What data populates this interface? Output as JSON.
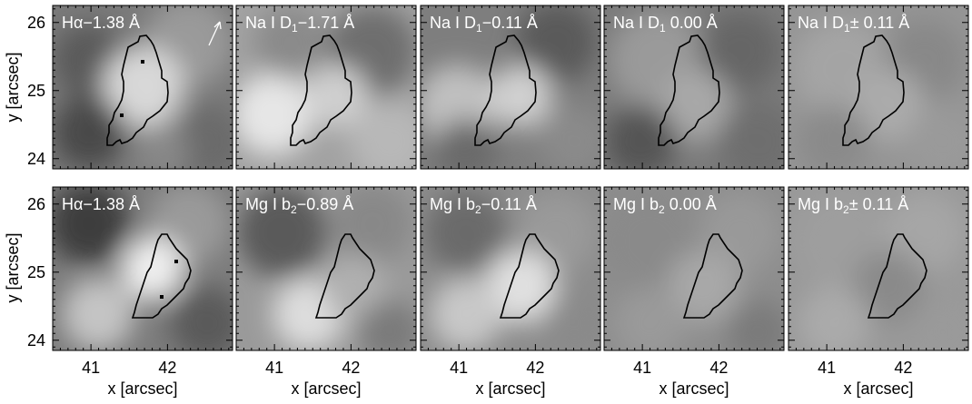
{
  "figure": {
    "x_axis_label": "x  [arcsec]",
    "y_axis_label": "y  [arcsec]",
    "x_ticks": [
      "41",
      "42"
    ],
    "y_ticks": [
      "24",
      "25",
      "26"
    ],
    "x_range": [
      40.5,
      42.85
    ],
    "y_range": [
      23.85,
      26.25
    ],
    "panels_top": [
      {
        "id": "t1",
        "line": "Hα",
        "offset": "−1.38 Å",
        "mean_gray": "#7a7a7a",
        "direction_arrow": true,
        "marker_count": 2
      },
      {
        "id": "t2",
        "line": "Na I D",
        "sub": "1",
        "offset": "−1.71 Å",
        "mean_gray": "#a2a2a2"
      },
      {
        "id": "t3",
        "line": "Na I D",
        "sub": "1",
        "offset": "−0.11 Å",
        "mean_gray": "#7e7e7e"
      },
      {
        "id": "t4",
        "line": "Na I D",
        "sub": "1",
        "offset": " 0.00 Å",
        "mean_gray": "#7b7b7b"
      },
      {
        "id": "t5",
        "line": "Na I D",
        "sub": "1",
        "offset": "± 0.11 Å",
        "mean_gray": "#959595"
      }
    ],
    "panels_bottom": [
      {
        "id": "b1",
        "line": "Hα",
        "offset": "−1.38 Å",
        "mean_gray": "#7c7c7c",
        "marker_count": 2
      },
      {
        "id": "b2",
        "line": "Mg I b",
        "sub": "2",
        "offset": "−0.89 Å",
        "mean_gray": "#9a9a9a"
      },
      {
        "id": "b3",
        "line": "Mg I b",
        "sub": "2",
        "offset": "−0.11 Å",
        "mean_gray": "#8c8c8c"
      },
      {
        "id": "b4",
        "line": "Mg I b",
        "sub": "2",
        "offset": " 0.00 Å",
        "mean_gray": "#8d8d8d"
      },
      {
        "id": "b5",
        "line": "Mg I b",
        "sub": "2",
        "offset": "± 0.11 Å",
        "mean_gray": "#999999"
      }
    ]
  }
}
